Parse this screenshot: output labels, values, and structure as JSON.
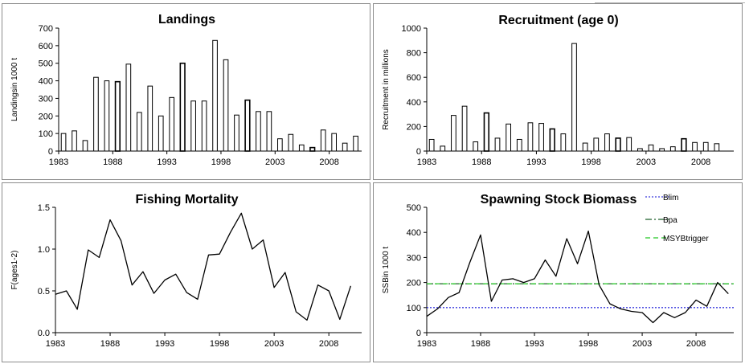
{
  "chart_data": [
    {
      "id": "landings",
      "type": "bar",
      "title": "Landings",
      "ylabel": "Landingsin 1000 t",
      "xlabel": "",
      "ylim": [
        0,
        700
      ],
      "yticks": [
        "0",
        "100",
        "200",
        "300",
        "400",
        "500",
        "600",
        "700"
      ],
      "xticks": [
        "1983",
        "1988",
        "1993",
        "1998",
        "2003",
        "2008"
      ],
      "x": [
        1983,
        1984,
        1985,
        1986,
        1987,
        1988,
        1989,
        1990,
        1991,
        1992,
        1993,
        1994,
        1995,
        1996,
        1997,
        1998,
        1999,
        2000,
        2001,
        2002,
        2003,
        2004,
        2005,
        2006,
        2007,
        2008,
        2009,
        2010
      ],
      "values": [
        100,
        115,
        60,
        420,
        400,
        395,
        495,
        220,
        370,
        200,
        305,
        500,
        285,
        285,
        630,
        520,
        205,
        290,
        225,
        225,
        70,
        95,
        35,
        20,
        120,
        100,
        45,
        85
      ],
      "grid": false
    },
    {
      "id": "recruitment",
      "type": "bar",
      "title": "Recruitment (age 0)",
      "ylabel": "Recruitment in millions",
      "xlabel": "",
      "ylim": [
        0,
        1000
      ],
      "yticks": [
        "0",
        "200",
        "400",
        "600",
        "800",
        "1000"
      ],
      "xticks": [
        "1983",
        "1988",
        "1993",
        "1998",
        "2003",
        "2008"
      ],
      "x": [
        1983,
        1984,
        1985,
        1986,
        1987,
        1988,
        1989,
        1990,
        1991,
        1992,
        1993,
        1994,
        1995,
        1996,
        1997,
        1998,
        1999,
        2000,
        2001,
        2002,
        2003,
        2004,
        2005,
        2006,
        2007,
        2008,
        2009
      ],
      "values": [
        95,
        40,
        290,
        365,
        75,
        310,
        105,
        220,
        95,
        230,
        225,
        180,
        140,
        875,
        65,
        105,
        140,
        105,
        110,
        20,
        50,
        20,
        35,
        100,
        70,
        70,
        60
      ],
      "grid": false
    },
    {
      "id": "fishing-mortality",
      "type": "line",
      "title": "Fishing Mortality",
      "ylabel": "F(ages1-2)",
      "xlabel": "",
      "ylim": [
        0,
        1.5
      ],
      "yticks": [
        "0.0",
        "0.5",
        "1.0",
        "1.5"
      ],
      "xticks": [
        "1983",
        "1988",
        "1993",
        "1998",
        "2003",
        "2008"
      ],
      "x": [
        1983,
        1984,
        1985,
        1986,
        1987,
        1988,
        1989,
        1990,
        1991,
        1992,
        1993,
        1994,
        1995,
        1996,
        1997,
        1998,
        1999,
        2000,
        2001,
        2002,
        2003,
        2004,
        2005,
        2006,
        2007,
        2008,
        2009,
        2010
      ],
      "series": [
        {
          "values": [
            0.46,
            0.5,
            0.28,
            0.99,
            0.9,
            1.35,
            1.1,
            0.57,
            0.73,
            0.47,
            0.63,
            0.7,
            0.48,
            0.4,
            0.93,
            0.94,
            1.2,
            1.43,
            1.0,
            1.11,
            0.54,
            0.72,
            0.25,
            0.15,
            0.57,
            0.5,
            0.16,
            0.56
          ],
          "color": "#000000"
        }
      ],
      "grid": false
    },
    {
      "id": "ssb",
      "type": "line",
      "title": "Spawning Stock Biomass",
      "ylabel": "SSBin 1000 t",
      "xlabel": "",
      "ylim": [
        0,
        500
      ],
      "yticks": [
        "0",
        "100",
        "200",
        "300",
        "400",
        "500"
      ],
      "xticks": [
        "1983",
        "1988",
        "1993",
        "1998",
        "2003",
        "2008"
      ],
      "x": [
        1983,
        1984,
        1985,
        1986,
        1987,
        1988,
        1989,
        1990,
        1991,
        1992,
        1993,
        1994,
        1995,
        1996,
        1997,
        1998,
        1999,
        2000,
        2001,
        2002,
        2003,
        2004,
        2005,
        2006,
        2007,
        2008,
        2009,
        2010,
        2011
      ],
      "series": [
        {
          "values": [
            65,
            95,
            140,
            160,
            280,
            390,
            125,
            210,
            215,
            200,
            215,
            290,
            225,
            375,
            275,
            405,
            190,
            115,
            95,
            85,
            80,
            40,
            80,
            60,
            80,
            130,
            105,
            200,
            155
          ],
          "color": "#000000"
        }
      ],
      "reference_lines": [
        {
          "name": "Blim",
          "value": 100,
          "color": "#3b3bde",
          "style": "dotted"
        },
        {
          "name": "Bpa",
          "value": 195,
          "color": "#1f5f2a",
          "style": "dashdot"
        },
        {
          "name": "MSYBtrigger",
          "value": 195,
          "color": "#23c623",
          "style": "dashed"
        }
      ],
      "legend": "top-right",
      "grid": false
    }
  ],
  "colors": {
    "bar_fill": "#ffffff",
    "bar_stroke": "#000000",
    "line": "#000000",
    "panel_border": "#8c8c8c"
  }
}
